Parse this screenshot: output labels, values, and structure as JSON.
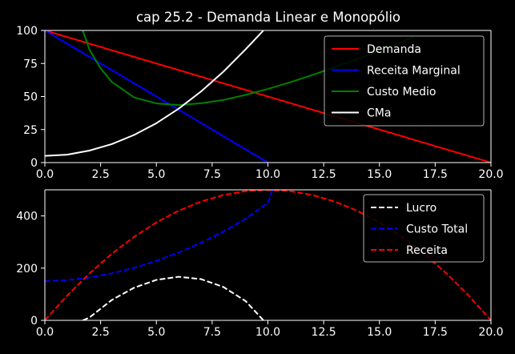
{
  "title": "cap 25.2 - Demanda Linear e Monopólio",
  "chart_data": [
    {
      "type": "line",
      "xlim": [
        0,
        20
      ],
      "ylim": [
        0,
        100
      ],
      "xticks": [
        "0.0",
        "2.5",
        "5.0",
        "7.5",
        "10.0",
        "12.5",
        "15.0",
        "17.5",
        "20.0"
      ],
      "yticks": [
        "0",
        "25",
        "50",
        "75",
        "100"
      ],
      "legend_position": "top-right",
      "series": [
        {
          "name": "Demanda",
          "color": "#ff0000",
          "style": "solid",
          "x": [
            0,
            20
          ],
          "y": [
            100,
            0
          ]
        },
        {
          "name": "Receita Marginal",
          "color": "#0000ff",
          "style": "solid",
          "x": [
            0,
            10
          ],
          "y": [
            100,
            0
          ]
        },
        {
          "name": "Custo Medio",
          "color": "#008000",
          "style": "solid",
          "x": [
            1.7,
            2,
            2.5,
            3,
            4,
            5,
            6,
            7,
            8,
            9,
            10,
            11,
            12,
            13,
            14,
            15,
            16,
            16.5
          ],
          "y": [
            100,
            85.5,
            71.3,
            61.1,
            49.3,
            44.8,
            43.5,
            44.9,
            47.4,
            51.2,
            55.7,
            60.8,
            66.3,
            72.2,
            78.4,
            84.7,
            91.3,
            94.8
          ]
        },
        {
          "name": "CMa",
          "color": "#ffffff",
          "style": "solid",
          "x": [
            0,
            1,
            2,
            3,
            4,
            5,
            6,
            7,
            8,
            9,
            9.8
          ],
          "y": [
            5.1,
            6.0,
            9.1,
            14.0,
            20.9,
            29.8,
            40.8,
            53.8,
            68.7,
            85.7,
            100
          ]
        }
      ]
    },
    {
      "type": "line",
      "xlim": [
        0,
        20
      ],
      "ylim": [
        0,
        500
      ],
      "xticks": [
        "0.0",
        "2.5",
        "5.0",
        "7.5",
        "10.0",
        "12.5",
        "15.0",
        "17.5",
        "20.0"
      ],
      "yticks": [
        "0",
        "200",
        "400"
      ],
      "legend_position": "top-right",
      "series": [
        {
          "name": "Lucro",
          "color": "#ffffff",
          "style": "dashed",
          "x": [
            1.7,
            2,
            3,
            4,
            5,
            6,
            7,
            8,
            9,
            9.8
          ],
          "y": [
            0,
            11,
            78,
            125,
            155,
            167,
            158,
            128,
            74,
            0
          ]
        },
        {
          "name": "Custo Total",
          "color": "#0000ff",
          "style": "dashed",
          "x": [
            0,
            1,
            2,
            3,
            4,
            5,
            6,
            7,
            8,
            9,
            10,
            10.2
          ],
          "y": [
            150,
            154,
            164,
            180,
            201,
            228,
            260,
            297,
            340,
            389,
            450,
            500
          ]
        },
        {
          "name": "Receita",
          "color": "#ff0000",
          "style": "dashed",
          "x": [
            0,
            1,
            2,
            3,
            4,
            5,
            6,
            7,
            8,
            9,
            10,
            11,
            12,
            13,
            14,
            15,
            16,
            17,
            18,
            19,
            20
          ],
          "y": [
            0,
            95,
            180,
            255,
            320,
            375,
            420,
            455,
            480,
            495,
            500,
            495,
            480,
            455,
            420,
            375,
            320,
            255,
            180,
            95,
            0
          ]
        }
      ]
    }
  ]
}
